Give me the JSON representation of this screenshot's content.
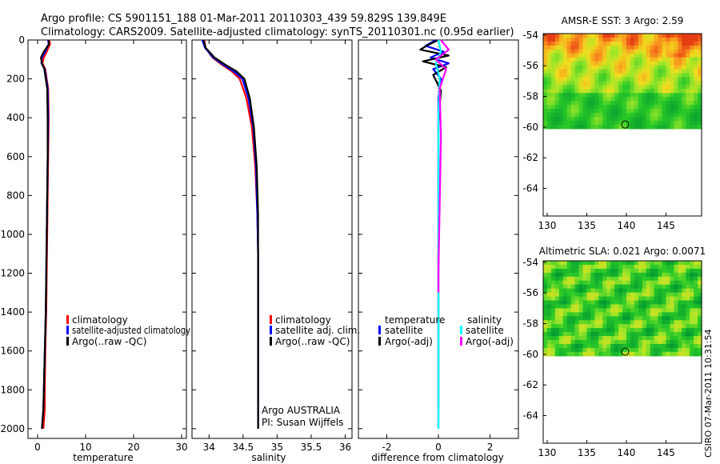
{
  "header": {
    "line1": "Argo profile: CS 5901151_188 01-Mar-2011 20110303_439 59.829S 139.849E",
    "line2": "Climatology: CARS2009. Satellite-adjusted climatology: synTS_20110301.nc (0.95d earlier)"
  },
  "colors": {
    "climatology": "#ff0000",
    "satellite": "#0000ff",
    "argo": "#000000",
    "sal_satellite": "#00ffff",
    "sal_argo": "#ff00ff"
  },
  "chart_data": [
    {
      "type": "line",
      "name": "temperature",
      "xlabel": "temperature",
      "ylabel": "",
      "xlim": [
        -2,
        31
      ],
      "ylim": [
        2050,
        0
      ],
      "xticks": [
        0,
        10,
        20,
        30
      ],
      "yticks": [
        0,
        200,
        400,
        600,
        800,
        1000,
        1200,
        1400,
        1600,
        1800,
        2000
      ],
      "legend": [
        "climatology",
        "satellite-adjusted climatology",
        "Argo(..raw -QC)"
      ],
      "series": [
        {
          "name": "climatology",
          "color": "#ff0000",
          "x": [
            2.4,
            2.6,
            1.9,
            1.3,
            1.0,
            1.6,
            2.2,
            2.3,
            2.2,
            2.1,
            2.0,
            1.9,
            1.8,
            1.6,
            1.5,
            1.5,
            1.2
          ],
          "y": [
            0,
            20,
            60,
            90,
            120,
            150,
            250,
            400,
            600,
            800,
            1000,
            1200,
            1400,
            1600,
            1800,
            1900,
            2000
          ]
        },
        {
          "name": "satellite-adjusted climatology",
          "color": "#0000ff",
          "x": [
            2.2,
            2.3,
            1.6,
            0.9,
            0.8,
            1.5,
            2.1,
            2.2,
            2.1,
            2.0,
            1.9,
            1.8,
            1.7,
            1.5,
            1.3,
            1.2,
            0.9
          ],
          "y": [
            0,
            20,
            60,
            90,
            120,
            150,
            250,
            400,
            600,
            800,
            1000,
            1200,
            1400,
            1600,
            1800,
            1900,
            2000
          ]
        },
        {
          "name": "Argo(..raw -QC)",
          "color": "#000000",
          "x": [
            2.3,
            2.4,
            1.3,
            0.7,
            0.9,
            1.4,
            2.0,
            2.1,
            2.1,
            2.0,
            1.9,
            1.8,
            1.7,
            1.5,
            1.3,
            1.2,
            0.9
          ],
          "y": [
            0,
            20,
            60,
            90,
            120,
            150,
            250,
            400,
            600,
            800,
            1000,
            1200,
            1400,
            1600,
            1800,
            1900,
            2000
          ]
        }
      ]
    },
    {
      "type": "line",
      "name": "salinity",
      "xlabel": "salinity",
      "ylabel": "",
      "xlim": [
        33.75,
        36.1
      ],
      "ylim": [
        2050,
        0
      ],
      "xticks": [
        34,
        34.5,
        35,
        35.5,
        36
      ],
      "yticks": [],
      "legend": [
        "climatology",
        "satellite adj. clim.",
        "Argo(..raw -QC)"
      ],
      "annotation": [
        "Argo AUSTRALIA",
        "PI: Susan Wijffels"
      ],
      "series": [
        {
          "name": "climatology",
          "color": "#ff0000",
          "x": [
            33.93,
            33.95,
            34.05,
            34.2,
            34.33,
            34.45,
            34.55,
            34.63,
            34.68,
            34.71,
            34.72,
            34.72,
            34.72,
            34.72,
            34.72
          ],
          "y": [
            0,
            40,
            90,
            130,
            160,
            200,
            300,
            450,
            650,
            900,
            1100,
            1300,
            1500,
            1800,
            2000
          ]
        },
        {
          "name": "satellite adj. clim.",
          "color": "#0000ff",
          "x": [
            33.9,
            33.94,
            34.06,
            34.22,
            34.36,
            34.49,
            34.58,
            34.65,
            34.69,
            34.71,
            34.72,
            34.72,
            34.72,
            34.72,
            34.72
          ],
          "y": [
            0,
            40,
            90,
            130,
            160,
            200,
            300,
            450,
            650,
            900,
            1100,
            1300,
            1500,
            1800,
            2000
          ]
        },
        {
          "name": "Argo(..raw -QC)",
          "color": "#000000",
          "x": [
            33.92,
            33.95,
            34.08,
            34.25,
            34.4,
            34.52,
            34.6,
            34.66,
            34.7,
            34.72,
            34.72,
            34.72,
            34.72,
            34.72,
            34.72
          ],
          "y": [
            0,
            40,
            90,
            130,
            160,
            200,
            300,
            450,
            650,
            900,
            1100,
            1300,
            1500,
            1800,
            2000
          ]
        }
      ]
    },
    {
      "type": "line",
      "name": "difference",
      "xlabel": "difference from climatology",
      "ylabel": "",
      "xlim": [
        -3.1,
        3.1
      ],
      "ylim": [
        2050,
        0
      ],
      "xticks": [
        -2,
        0,
        2
      ],
      "yticks": [],
      "legend_title_left": "temperature",
      "legend_title_right": "salinity",
      "legend_left": [
        "satellite",
        "Argo(-adj)"
      ],
      "legend_right": [
        "satellite",
        "Argo(-adj)"
      ],
      "series": [
        {
          "name": "temperature satellite",
          "color": "#0000ff",
          "x": [
            -0.1,
            -0.5,
            0.2,
            -0.3,
            0.4,
            -0.2,
            0.1,
            0.0,
            0.0,
            0.0,
            0.0,
            0.0
          ],
          "y": [
            0,
            30,
            60,
            90,
            120,
            150,
            200,
            300,
            500,
            800,
            1200,
            2000
          ]
        },
        {
          "name": "temperature Argo(-adj)",
          "color": "#000000",
          "x": [
            0.0,
            -0.4,
            -0.7,
            0.4,
            -0.6,
            0.3,
            -0.2,
            0.1,
            0.0,
            0.0,
            0.0,
            0.0
          ],
          "y": [
            0,
            25,
            50,
            80,
            110,
            140,
            180,
            260,
            420,
            600,
            900,
            1900
          ]
        },
        {
          "name": "salinity satellite",
          "color": "#00ffff",
          "x": [
            0.0,
            0.1,
            -0.1,
            0.05,
            0.0,
            0.0,
            0.0,
            0.0
          ],
          "y": [
            0,
            60,
            120,
            200,
            400,
            800,
            1300,
            2000
          ]
        },
        {
          "name": "salinity Argo(-adj)",
          "color": "#ff00ff",
          "x": [
            0.1,
            0.4,
            -0.1,
            0.3,
            0.05,
            0.1,
            0.0,
            0.0
          ],
          "y": [
            0,
            50,
            100,
            150,
            250,
            500,
            1200,
            1300
          ]
        }
      ]
    },
    {
      "type": "heatmap",
      "name": "sst_map",
      "title": "AMSR-E SST: 3 Argo: 2.59",
      "xlim": [
        129.5,
        149.5
      ],
      "ylim": [
        -65.8,
        -53.9
      ],
      "xticks": [
        130,
        135,
        140,
        145
      ],
      "yticks": [
        -54,
        -56,
        -58,
        -60,
        -62,
        -64
      ],
      "data_lat_range": [
        -60.1,
        -53.9
      ],
      "argo_position": [
        139.85,
        -59.83
      ]
    },
    {
      "type": "heatmap",
      "name": "sla_map",
      "title": "Altimetric SLA: 0.021 Argo: 0.0071",
      "xlim": [
        129.5,
        149.5
      ],
      "ylim": [
        -65.8,
        -53.9
      ],
      "xticks": [
        130,
        135,
        140,
        145
      ],
      "yticks": [
        -54,
        -56,
        -58,
        -60,
        -62,
        -64
      ],
      "data_lat_range": [
        -60.1,
        -53.9
      ],
      "argo_position": [
        139.85,
        -59.83
      ]
    }
  ],
  "footer": {
    "credit": "CSIRO 07-Mar-2011 10:31:54"
  }
}
